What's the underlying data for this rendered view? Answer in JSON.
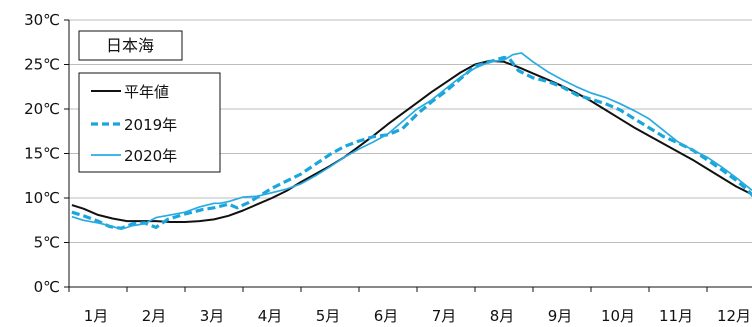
{
  "chart_data": {
    "type": "line",
    "title": "日本海",
    "xlabel": "",
    "ylabel": "",
    "ylim": [
      0,
      30
    ],
    "yticks": [
      0,
      5,
      10,
      15,
      20,
      25,
      30
    ],
    "ytick_labels": [
      "0℃",
      "5℃",
      "10℃",
      "15℃",
      "20℃",
      "25℃",
      "30℃"
    ],
    "xlim": [
      0.5,
      12.45
    ],
    "month_labels": [
      "1月",
      "2月",
      "3月",
      "4月",
      "5月",
      "6月",
      "7月",
      "8月",
      "9月",
      "10月",
      "11月",
      "12月"
    ],
    "grid": "horizontal",
    "legend_position": "top-left",
    "series": [
      {
        "name": "平年値",
        "color": "#111111",
        "style": "solid",
        "points": [
          [
            0.55,
            9.2
          ],
          [
            0.75,
            8.8
          ],
          [
            1.0,
            8.1
          ],
          [
            1.25,
            7.7
          ],
          [
            1.5,
            7.4
          ],
          [
            1.75,
            7.4
          ],
          [
            2.0,
            7.4
          ],
          [
            2.25,
            7.3
          ],
          [
            2.5,
            7.3
          ],
          [
            2.75,
            7.4
          ],
          [
            3.0,
            7.6
          ],
          [
            3.25,
            8.0
          ],
          [
            3.5,
            8.6
          ],
          [
            3.75,
            9.3
          ],
          [
            4.0,
            10.0
          ],
          [
            4.25,
            10.8
          ],
          [
            4.5,
            11.8
          ],
          [
            4.75,
            12.7
          ],
          [
            5.0,
            13.6
          ],
          [
            5.25,
            14.6
          ],
          [
            5.5,
            15.8
          ],
          [
            5.75,
            17.0
          ],
          [
            6.0,
            18.3
          ],
          [
            6.25,
            19.5
          ],
          [
            6.5,
            20.7
          ],
          [
            6.75,
            21.9
          ],
          [
            7.0,
            23.0
          ],
          [
            7.25,
            24.1
          ],
          [
            7.5,
            25.0
          ],
          [
            7.75,
            25.4
          ],
          [
            8.0,
            25.3
          ],
          [
            8.25,
            24.7
          ],
          [
            8.5,
            24.0
          ],
          [
            8.75,
            23.3
          ],
          [
            9.0,
            22.6
          ],
          [
            9.25,
            21.8
          ],
          [
            9.5,
            20.9
          ],
          [
            9.75,
            19.9
          ],
          [
            10.0,
            18.9
          ],
          [
            10.25,
            17.9
          ],
          [
            10.5,
            17.0
          ],
          [
            10.75,
            16.1
          ],
          [
            11.0,
            15.2
          ],
          [
            11.25,
            14.3
          ],
          [
            11.5,
            13.3
          ],
          [
            11.75,
            12.3
          ],
          [
            12.0,
            11.3
          ],
          [
            12.25,
            10.5
          ],
          [
            12.45,
            10.0
          ]
        ]
      },
      {
        "name": "2019年",
        "color": "#1aa6dc",
        "style": "dashed",
        "points": [
          [
            0.55,
            8.4
          ],
          [
            0.75,
            8.0
          ],
          [
            1.0,
            7.4
          ],
          [
            1.2,
            6.8
          ],
          [
            1.4,
            6.6
          ],
          [
            1.6,
            7.1
          ],
          [
            1.8,
            7.2
          ],
          [
            2.0,
            6.7
          ],
          [
            2.2,
            7.6
          ],
          [
            2.5,
            8.2
          ],
          [
            2.8,
            8.7
          ],
          [
            3.0,
            8.9
          ],
          [
            3.25,
            9.3
          ],
          [
            3.4,
            8.9
          ],
          [
            3.6,
            9.5
          ],
          [
            3.8,
            10.3
          ],
          [
            4.0,
            11.1
          ],
          [
            4.25,
            11.9
          ],
          [
            4.5,
            12.7
          ],
          [
            4.75,
            13.8
          ],
          [
            5.0,
            14.9
          ],
          [
            5.25,
            15.8
          ],
          [
            5.5,
            16.4
          ],
          [
            5.75,
            16.9
          ],
          [
            6.0,
            17.1
          ],
          [
            6.25,
            17.8
          ],
          [
            6.5,
            19.4
          ],
          [
            6.75,
            20.8
          ],
          [
            7.0,
            22.0
          ],
          [
            7.25,
            23.4
          ],
          [
            7.5,
            24.8
          ],
          [
            7.75,
            25.3
          ],
          [
            8.0,
            25.8
          ],
          [
            8.1,
            25.6
          ],
          [
            8.25,
            24.3
          ],
          [
            8.5,
            23.5
          ],
          [
            8.75,
            23.1
          ],
          [
            9.0,
            22.5
          ],
          [
            9.25,
            21.6
          ],
          [
            9.5,
            21.1
          ],
          [
            9.75,
            20.6
          ],
          [
            10.0,
            19.9
          ],
          [
            10.25,
            18.9
          ],
          [
            10.5,
            17.9
          ],
          [
            10.75,
            16.9
          ],
          [
            11.0,
            16.2
          ],
          [
            11.25,
            15.4
          ],
          [
            11.5,
            14.3
          ],
          [
            11.75,
            13.2
          ],
          [
            12.0,
            12.0
          ],
          [
            12.2,
            10.9
          ],
          [
            12.45,
            9.1
          ]
        ]
      },
      {
        "name": "2020年",
        "color": "#29abe2",
        "style": "solid",
        "points": [
          [
            0.55,
            7.9
          ],
          [
            0.75,
            7.5
          ],
          [
            1.0,
            7.2
          ],
          [
            1.2,
            6.9
          ],
          [
            1.4,
            6.5
          ],
          [
            1.6,
            6.9
          ],
          [
            1.8,
            7.1
          ],
          [
            2.0,
            7.8
          ],
          [
            2.25,
            8.1
          ],
          [
            2.5,
            8.4
          ],
          [
            2.75,
            9.0
          ],
          [
            3.0,
            9.4
          ],
          [
            3.1,
            9.4
          ],
          [
            3.25,
            9.6
          ],
          [
            3.5,
            10.1
          ],
          [
            3.75,
            10.2
          ],
          [
            4.0,
            10.6
          ],
          [
            4.25,
            11.0
          ],
          [
            4.5,
            11.6
          ],
          [
            4.75,
            12.5
          ],
          [
            5.0,
            13.5
          ],
          [
            5.25,
            14.6
          ],
          [
            5.5,
            15.5
          ],
          [
            5.75,
            16.3
          ],
          [
            6.0,
            17.2
          ],
          [
            6.25,
            18.6
          ],
          [
            6.5,
            20.0
          ],
          [
            6.75,
            21.0
          ],
          [
            7.0,
            22.3
          ],
          [
            7.25,
            23.6
          ],
          [
            7.5,
            24.6
          ],
          [
            7.75,
            25.3
          ],
          [
            8.0,
            25.5
          ],
          [
            8.15,
            26.1
          ],
          [
            8.3,
            26.3
          ],
          [
            8.5,
            25.3
          ],
          [
            8.75,
            24.2
          ],
          [
            9.0,
            23.3
          ],
          [
            9.25,
            22.5
          ],
          [
            9.5,
            21.8
          ],
          [
            9.75,
            21.3
          ],
          [
            10.0,
            20.6
          ],
          [
            10.25,
            19.8
          ],
          [
            10.5,
            18.9
          ],
          [
            10.75,
            17.6
          ],
          [
            11.0,
            16.3
          ],
          [
            11.25,
            15.4
          ],
          [
            11.5,
            14.6
          ],
          [
            11.75,
            13.5
          ],
          [
            12.0,
            12.3
          ],
          [
            12.25,
            11.0
          ],
          [
            12.45,
            10.1
          ]
        ]
      }
    ]
  }
}
